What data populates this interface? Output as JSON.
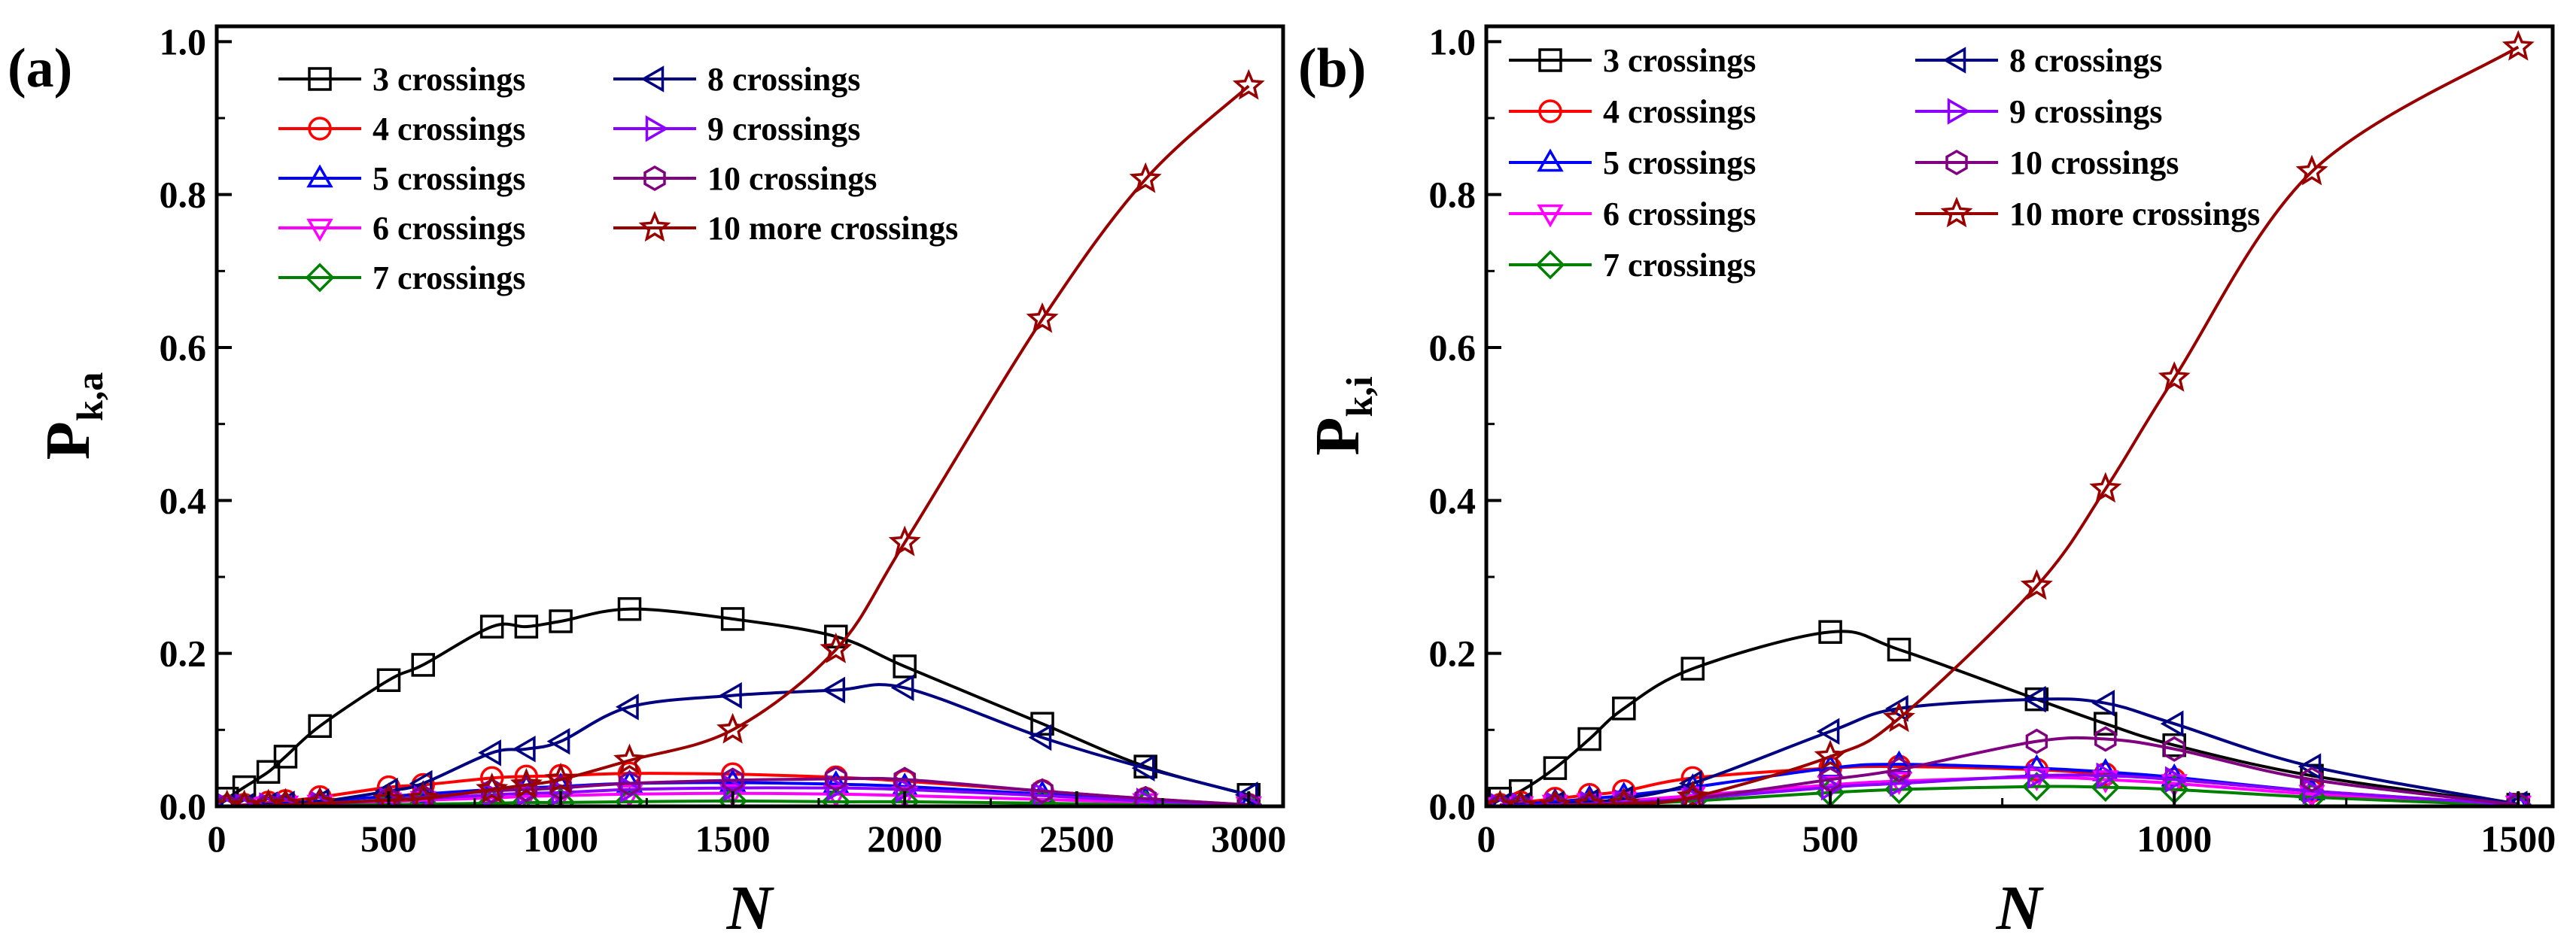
{
  "colors": {
    "3": "#000000",
    "4": "#ff0000",
    "5": "#0000ff",
    "6": "#ff00ff",
    "7": "#008000",
    "8": "#000080",
    "9": "#8b00ff",
    "10": "#800080",
    "10more": "#990000"
  },
  "markers": {
    "3": "square",
    "4": "circle",
    "5": "triangle-up",
    "6": "triangle-down",
    "7": "diamond",
    "8": "triangle-left",
    "9": "triangle-right",
    "10": "hexagon",
    "10more": "star"
  },
  "chart_data": [
    {
      "panel_label": "(a)",
      "type": "line",
      "xlabel": "N",
      "ylabel": "P",
      "ylabel_subscript": "k,a",
      "xlim": [
        0,
        3100
      ],
      "ylim": [
        0,
        1.02
      ],
      "xticks": [
        0,
        500,
        1000,
        1500,
        2000,
        2500,
        3000
      ],
      "yticks": [
        0.0,
        0.2,
        0.4,
        0.6,
        0.8,
        1.0
      ],
      "x_tick_labels": [
        "0",
        "500",
        "1000",
        "1500",
        "2000",
        "2500",
        "3000"
      ],
      "y_tick_labels": [
        "0.0",
        "0.2",
        "0.4",
        "0.6",
        "0.8",
        "1.0"
      ],
      "legend": "top-left, two columns",
      "grid": false,
      "series": [
        {
          "key": "3",
          "name": "3 crossings",
          "x": [
            30,
            80,
            150,
            200,
            300,
            500,
            600,
            800,
            900,
            1000,
            1200,
            1500,
            1800,
            2000,
            2400,
            2700,
            3000
          ],
          "y": [
            0.01,
            0.025,
            0.045,
            0.065,
            0.105,
            0.165,
            0.185,
            0.235,
            0.235,
            0.242,
            0.258,
            0.245,
            0.222,
            0.183,
            0.108,
            0.052,
            0.015
          ]
        },
        {
          "key": "4",
          "name": "4 crossings",
          "x": [
            30,
            80,
            150,
            200,
            300,
            500,
            600,
            800,
            900,
            1000,
            1200,
            1500,
            1800,
            2000,
            2400,
            2700,
            3000
          ],
          "y": [
            0.0,
            0.002,
            0.005,
            0.007,
            0.012,
            0.025,
            0.028,
            0.037,
            0.039,
            0.04,
            0.043,
            0.042,
            0.038,
            0.033,
            0.02,
            0.01,
            0.002
          ]
        },
        {
          "key": "5",
          "name": "5 crossings",
          "x": [
            30,
            80,
            150,
            200,
            300,
            500,
            600,
            800,
            900,
            1000,
            1200,
            1500,
            1800,
            2000,
            2400,
            2700,
            3000
          ],
          "y": [
            0.0,
            0.001,
            0.003,
            0.004,
            0.007,
            0.013,
            0.016,
            0.022,
            0.024,
            0.026,
            0.03,
            0.031,
            0.029,
            0.026,
            0.016,
            0.008,
            0.002
          ]
        },
        {
          "key": "6",
          "name": "6 crossings",
          "x": [
            30,
            80,
            150,
            200,
            300,
            500,
            600,
            800,
            900,
            1000,
            1200,
            1500,
            1800,
            2000,
            2400,
            2700,
            3000
          ],
          "y": [
            0.0,
            0.0,
            0.001,
            0.002,
            0.003,
            0.006,
            0.008,
            0.011,
            0.013,
            0.014,
            0.016,
            0.017,
            0.016,
            0.014,
            0.009,
            0.005,
            0.001
          ]
        },
        {
          "key": "7",
          "name": "7 crossings",
          "x": [
            30,
            80,
            150,
            200,
            300,
            500,
            600,
            800,
            900,
            1000,
            1200,
            1500,
            1800,
            2000,
            2400,
            2700,
            3000
          ],
          "y": [
            0.0,
            0.0,
            0.0,
            0.001,
            0.001,
            0.002,
            0.003,
            0.004,
            0.005,
            0.005,
            0.006,
            0.007,
            0.006,
            0.006,
            0.004,
            0.002,
            0.001
          ]
        },
        {
          "key": "8",
          "name": "8 crossings",
          "x": [
            30,
            80,
            150,
            200,
            300,
            500,
            600,
            800,
            900,
            1000,
            1200,
            1500,
            1800,
            2000,
            2400,
            2700,
            3000
          ],
          "y": [
            0.0,
            0.0,
            0.002,
            0.003,
            0.006,
            0.02,
            0.03,
            0.07,
            0.075,
            0.085,
            0.13,
            0.145,
            0.152,
            0.155,
            0.09,
            0.05,
            0.015
          ]
        },
        {
          "key": "9",
          "name": "9 crossings",
          "x": [
            30,
            80,
            150,
            200,
            300,
            500,
            600,
            800,
            900,
            1000,
            1200,
            1500,
            1800,
            2000,
            2400,
            2700,
            3000
          ],
          "y": [
            0.0,
            0.0,
            0.001,
            0.001,
            0.003,
            0.008,
            0.01,
            0.015,
            0.017,
            0.018,
            0.022,
            0.024,
            0.024,
            0.022,
            0.014,
            0.007,
            0.002
          ]
        },
        {
          "key": "10",
          "name": "10 crossings",
          "x": [
            30,
            80,
            150,
            200,
            300,
            500,
            600,
            800,
            900,
            1000,
            1200,
            1500,
            1800,
            2000,
            2400,
            2700,
            3000
          ],
          "y": [
            0.0,
            0.0,
            0.001,
            0.001,
            0.003,
            0.009,
            0.012,
            0.02,
            0.022,
            0.024,
            0.03,
            0.034,
            0.036,
            0.035,
            0.02,
            0.01,
            0.002
          ]
        },
        {
          "key": "10more",
          "name": "10 more crossings",
          "x": [
            30,
            80,
            150,
            200,
            300,
            500,
            600,
            800,
            900,
            1000,
            1200,
            1500,
            1800,
            2000,
            2400,
            2700,
            3000
          ],
          "y": [
            0.0,
            0.0,
            0.001,
            0.002,
            0.004,
            0.008,
            0.01,
            0.022,
            0.028,
            0.035,
            0.06,
            0.1,
            0.205,
            0.345,
            0.637,
            0.82,
            0.942
          ]
        }
      ]
    },
    {
      "panel_label": "(b)",
      "type": "line",
      "xlabel": "N",
      "ylabel": "P",
      "ylabel_subscript": "k,i",
      "xlim": [
        0,
        1550
      ],
      "ylim": [
        0,
        1.02
      ],
      "xticks": [
        0,
        500,
        1000,
        1500
      ],
      "yticks": [
        0.0,
        0.2,
        0.4,
        0.6,
        0.8,
        1.0
      ],
      "x_tick_labels": [
        "0",
        "500",
        "1000",
        "1500"
      ],
      "y_tick_labels": [
        "0.0",
        "0.2",
        "0.4",
        "0.6",
        "0.8",
        "1.0"
      ],
      "legend": "top-left, two columns",
      "grid": false,
      "series": [
        {
          "key": "3",
          "name": "3 crossings",
          "x": [
            20,
            50,
            100,
            150,
            200,
            300,
            500,
            600,
            800,
            900,
            1000,
            1200,
            1500
          ],
          "y": [
            0.01,
            0.02,
            0.05,
            0.088,
            0.128,
            0.18,
            0.228,
            0.205,
            0.14,
            0.108,
            0.08,
            0.04,
            0.002
          ]
        },
        {
          "key": "4",
          "name": "4 crossings",
          "x": [
            20,
            50,
            100,
            150,
            200,
            300,
            500,
            600,
            800,
            900,
            1000,
            1200,
            1500
          ],
          "y": [
            0.002,
            0.005,
            0.01,
            0.015,
            0.02,
            0.037,
            0.05,
            0.052,
            0.048,
            0.042,
            0.035,
            0.02,
            0.002
          ]
        },
        {
          "key": "5",
          "name": "5 crossings",
          "x": [
            20,
            50,
            100,
            150,
            200,
            300,
            500,
            600,
            800,
            900,
            1000,
            1200,
            1500
          ],
          "y": [
            0.001,
            0.003,
            0.006,
            0.01,
            0.014,
            0.025,
            0.05,
            0.055,
            0.05,
            0.045,
            0.038,
            0.02,
            0.002
          ]
        },
        {
          "key": "6",
          "name": "6 crossings",
          "x": [
            20,
            50,
            100,
            150,
            200,
            300,
            500,
            600,
            800,
            900,
            1000,
            1200,
            1500
          ],
          "y": [
            0.0,
            0.001,
            0.003,
            0.005,
            0.007,
            0.014,
            0.028,
            0.033,
            0.038,
            0.035,
            0.03,
            0.016,
            0.002
          ]
        },
        {
          "key": "7",
          "name": "7 crossings",
          "x": [
            20,
            50,
            100,
            150,
            200,
            300,
            500,
            600,
            800,
            900,
            1000,
            1200,
            1500
          ],
          "y": [
            0.0,
            0.0,
            0.001,
            0.002,
            0.003,
            0.007,
            0.018,
            0.022,
            0.026,
            0.025,
            0.022,
            0.012,
            0.001
          ]
        },
        {
          "key": "8",
          "name": "8 crossings",
          "x": [
            20,
            50,
            100,
            150,
            200,
            300,
            500,
            600,
            800,
            900,
            1000,
            1200,
            1500
          ],
          "y": [
            0.0,
            0.001,
            0.003,
            0.006,
            0.01,
            0.03,
            0.098,
            0.128,
            0.14,
            0.135,
            0.108,
            0.052,
            0.003
          ]
        },
        {
          "key": "9",
          "name": "9 crossings",
          "x": [
            20,
            50,
            100,
            150,
            200,
            300,
            500,
            600,
            800,
            900,
            1000,
            1200,
            1500
          ],
          "y": [
            0.0,
            0.001,
            0.002,
            0.003,
            0.005,
            0.01,
            0.025,
            0.03,
            0.04,
            0.04,
            0.035,
            0.02,
            0.002
          ]
        },
        {
          "key": "10",
          "name": "10 crossings",
          "x": [
            20,
            50,
            100,
            150,
            200,
            300,
            500,
            600,
            800,
            900,
            1000,
            1200,
            1500
          ],
          "y": [
            0.0,
            0.0,
            0.001,
            0.002,
            0.004,
            0.01,
            0.035,
            0.048,
            0.085,
            0.088,
            0.075,
            0.035,
            0.002
          ]
        },
        {
          "key": "10more",
          "name": "10 more crossings",
          "x": [
            20,
            50,
            100,
            150,
            200,
            300,
            500,
            600,
            800,
            900,
            1000,
            1200,
            1500
          ],
          "y": [
            0.0,
            0.0,
            0.001,
            0.002,
            0.003,
            0.012,
            0.065,
            0.115,
            0.288,
            0.415,
            0.56,
            0.83,
            0.993
          ]
        }
      ]
    }
  ]
}
